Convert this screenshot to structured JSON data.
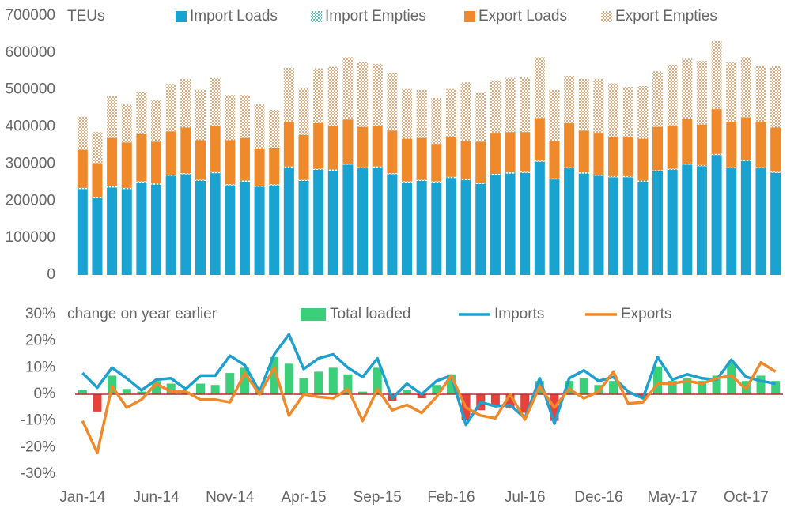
{
  "chart_data": [
    {
      "type": "stacked_bar",
      "y_label": "TEUs",
      "ylim": [
        0,
        700000
      ],
      "yticks": [
        0,
        100000,
        200000,
        300000,
        400000,
        500000,
        600000,
        700000
      ],
      "series": [
        {
          "name": "Import Loads",
          "color": "#1aa3d0",
          "hatch": false,
          "values": [
            232000,
            208000,
            236000,
            232000,
            250000,
            244000,
            268000,
            272000,
            254000,
            275000,
            242000,
            252000,
            238000,
            242000,
            290000,
            254000,
            284000,
            282000,
            298000,
            288000,
            290000,
            272000,
            250000,
            254000,
            250000,
            262000,
            256000,
            246000,
            270000,
            274000,
            276000,
            306000,
            258000,
            288000,
            274000,
            268000,
            264000,
            264000,
            252000,
            280000,
            284000,
            298000,
            294000,
            324000,
            288000,
            308000,
            288000,
            276000
          ]
        },
        {
          "name": "Import Empties",
          "color": "#2aa7a0",
          "hatch": true,
          "values": [
            3000,
            3000,
            3000,
            3000,
            3000,
            3000,
            3000,
            3000,
            3000,
            3000,
            3000,
            3000,
            3000,
            3000,
            3000,
            3000,
            3000,
            3000,
            3000,
            3000,
            3000,
            3000,
            3000,
            3000,
            3000,
            3000,
            3000,
            3000,
            3000,
            3000,
            3000,
            3000,
            3000,
            3000,
            3000,
            3000,
            3000,
            3000,
            3000,
            3000,
            3000,
            3000,
            3000,
            3000,
            3000,
            3000,
            3000,
            3000
          ]
        },
        {
          "name": "Export Loads",
          "color": "#ee8a2c",
          "hatch": false,
          "values": [
            103000,
            91000,
            131000,
            123000,
            127000,
            113000,
            117000,
            123000,
            107000,
            124000,
            119000,
            115000,
            101000,
            99000,
            121000,
            121000,
            123000,
            117000,
            119000,
            109000,
            109000,
            115000,
            115000,
            113000,
            101000,
            107000,
            103000,
            111000,
            111000,
            109000,
            107000,
            115000,
            101000,
            119000,
            113000,
            113000,
            107000,
            107000,
            113000,
            117000,
            117000,
            121000,
            109000,
            121000,
            123000,
            115000,
            123000,
            119000
          ]
        },
        {
          "name": "Export Empties",
          "color": "#c9935a",
          "hatch": true,
          "values": [
            90000,
            84000,
            114000,
            102000,
            114000,
            112000,
            128000,
            132000,
            136000,
            130000,
            122000,
            116000,
            120000,
            102000,
            146000,
            128000,
            148000,
            160000,
            168000,
            176000,
            168000,
            156000,
            134000,
            130000,
            124000,
            130000,
            158000,
            132000,
            142000,
            146000,
            148000,
            164000,
            138000,
            128000,
            140000,
            146000,
            144000,
            134000,
            142000,
            150000,
            164000,
            162000,
            172000,
            184000,
            160000,
            162000,
            152000,
            166000
          ]
        }
      ]
    },
    {
      "type": "combo",
      "y_label": "change on year earlier",
      "categories": [
        "Jan-14",
        null,
        null,
        null,
        null,
        "Jun-14",
        null,
        null,
        null,
        null,
        "Nov-14",
        null,
        null,
        null,
        null,
        "Apr-15",
        null,
        null,
        null,
        null,
        "Sep-15",
        null,
        null,
        null,
        null,
        "Feb-16",
        null,
        null,
        null,
        null,
        "Jul-16",
        null,
        null,
        null,
        null,
        "Dec-16",
        null,
        null,
        null,
        null,
        "May-17",
        null,
        null,
        null,
        null,
        "Oct-17",
        null,
        null
      ],
      "ylim": [
        -30,
        30
      ],
      "yticks": [
        {
          "value": -30,
          "label": "-30%"
        },
        {
          "value": -20,
          "label": "-20%"
        },
        {
          "value": -10,
          "label": "-10%"
        },
        {
          "value": 0,
          "label": "0%"
        },
        {
          "value": 10,
          "label": "10%"
        },
        {
          "value": 20,
          "label": "20%"
        },
        {
          "value": 30,
          "label": "30%"
        }
      ],
      "zero_line_color": "#c0282b",
      "series": [
        {
          "name": "Total loaded",
          "type": "bar",
          "color": "#3ccf7a",
          "negative_color": "#e8413c",
          "values": [
            1.5,
            -6.5,
            7,
            2,
            1,
            5,
            4,
            1,
            4,
            3.5,
            8,
            10,
            2,
            14,
            11.5,
            6,
            8.5,
            10,
            7.5,
            1,
            10,
            -2.5,
            1.5,
            -1.5,
            3.5,
            7.5,
            -9.5,
            -6,
            -4.5,
            -5,
            -7,
            5,
            -10,
            5,
            6,
            3.5,
            5,
            0.5,
            -1.5,
            10.5,
            5,
            6,
            5,
            7,
            12,
            5,
            7,
            5
          ]
        },
        {
          "name": "Imports",
          "type": "line",
          "color": "#1ea0cf",
          "values": [
            8,
            2.5,
            10,
            6,
            1.5,
            5.5,
            6,
            2,
            7,
            7,
            14.5,
            11,
            1,
            15,
            22.5,
            9.5,
            13.5,
            15,
            10,
            6.5,
            13.5,
            -1.5,
            4,
            0,
            5,
            7,
            -11.5,
            -3,
            -4.5,
            -4,
            -9,
            6,
            -11,
            6,
            9,
            5,
            6.5,
            1,
            -1.5,
            14,
            5.5,
            7.5,
            6,
            5.5,
            13,
            6.5,
            5,
            4
          ]
        },
        {
          "name": "Exports",
          "type": "line",
          "color": "#ee8a2c",
          "values": [
            -10,
            -22,
            3,
            -5,
            -2,
            4,
            1,
            1,
            -2,
            -2,
            -3,
            8,
            0,
            10,
            -8,
            0,
            -1,
            -1.5,
            2,
            -10,
            2,
            -6,
            -4,
            -7,
            -1,
            7,
            -5,
            -8,
            -9,
            0,
            -9.5,
            3,
            -5,
            2,
            -1.5,
            1,
            8.5,
            -3.5,
            -3,
            4,
            4,
            5,
            4,
            6,
            7,
            2,
            12,
            8.5
          ]
        }
      ]
    }
  ]
}
